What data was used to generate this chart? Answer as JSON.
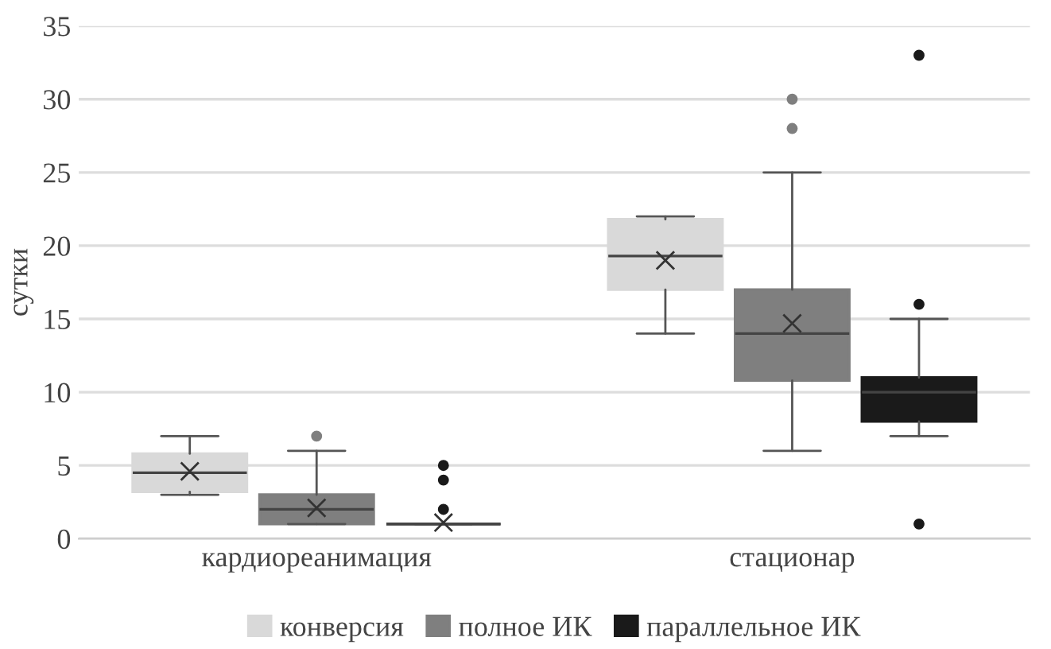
{
  "chart_data": {
    "type": "box",
    "ylabel": "сутки",
    "categories": [
      "кардиореанимация",
      "стационар"
    ],
    "ylim": [
      0,
      35
    ],
    "yticks": [
      0,
      5,
      10,
      15,
      20,
      25,
      30,
      35
    ],
    "grid": "y",
    "legend": "bottom",
    "series": [
      {
        "name": "конверсия",
        "color": "#d9d9d9",
        "boxes": [
          {
            "low": 3,
            "q1": 3.2,
            "median": 4.5,
            "q3": 5.8,
            "high": 7,
            "mean": 4.6
          },
          {
            "low": 14,
            "q1": 17,
            "median": 19.3,
            "q3": 21.8,
            "high": 22,
            "mean": 19
          }
        ]
      },
      {
        "name": "полное ИК",
        "color": "#7f7f7f",
        "boxes": [
          {
            "low": 1,
            "q1": 1,
            "median": 2,
            "q3": 3,
            "high": 6,
            "mean": 2.1,
            "outliers": [
              7
            ]
          },
          {
            "low": 6,
            "q1": 10.8,
            "median": 14,
            "q3": 17,
            "high": 25,
            "mean": 14.7,
            "outliers": [
              28,
              30
            ]
          }
        ]
      },
      {
        "name": "параллельное ИК",
        "color": "#1a1a1a",
        "boxes": [
          {
            "low": 1,
            "q1": 1,
            "median": 1,
            "q3": 1,
            "high": 1,
            "mean": 1.1,
            "outliers": [
              2,
              4,
              5
            ]
          },
          {
            "low": 7,
            "q1": 8,
            "median": 10,
            "q3": 11,
            "high": 15,
            "outliers": [
              1,
              16,
              33
            ]
          }
        ]
      }
    ]
  }
}
